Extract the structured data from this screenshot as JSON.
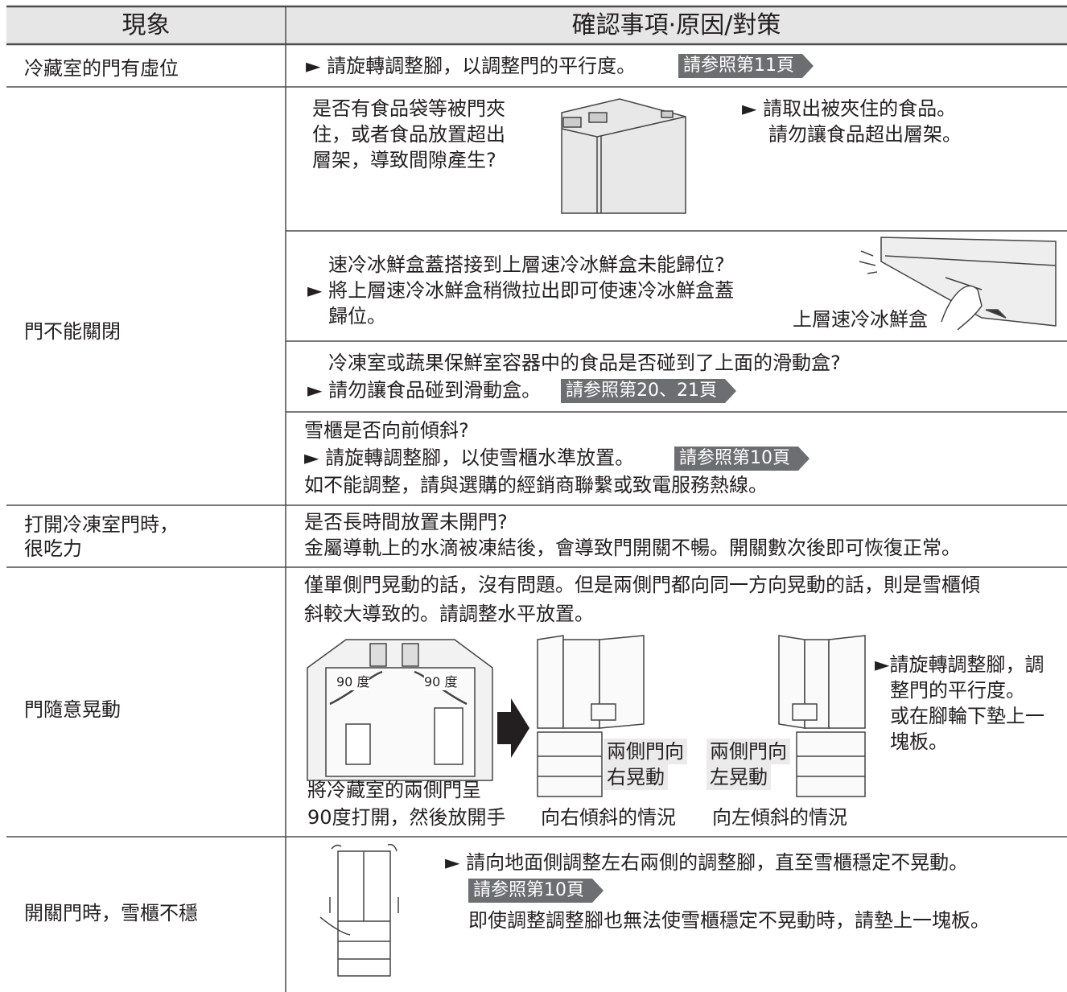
{
  "table": {
    "header": {
      "symptom": "現象",
      "check": "確認事項·原因/對策"
    },
    "rows": [
      {
        "symptom": [
          "冷藏室的門有虛位"
        ],
        "items": [
          {
            "lines": [
              "► 請旋轉調整腳，以調整門的平行度。"
            ],
            "reference": "請参照第11頁"
          }
        ]
      },
      {
        "symptom": [
          "門不能關閉"
        ],
        "items": [
          {
            "question": [
              "是否有食品袋等被門夾",
              "住，或者食品放置超出",
              "層架，導致間隙產生?"
            ],
            "action": [
              "► 請取出被夾住的食品。",
              "請勿讓食品超出層架。"
            ]
          },
          {
            "lines": [
              "速冷冰鮮盒蓋搭接到上層速冷冰鮮盒未能歸位?",
              "► 將上層速冷冰鮮盒稍微拉出即可使速冷冰鮮盒蓋",
              "歸位。"
            ],
            "figure_label": "上層速冷冰鮮盒"
          },
          {
            "lines": [
              "冷凍室或蔬果保鮮室容器中的食品是否碰到了上面的滑動盒?",
              "► 請勿讓食品碰到滑動盒。"
            ],
            "reference": "請参照第20、21頁"
          },
          {
            "lines": [
              "雪櫃是否向前傾斜?",
              "► 請旋轉調整腳，以使雪櫃水準放置。",
              "如不能調整，請與選購的經銷商聯繫或致電服務熱線。"
            ],
            "reference": "請参照第10頁"
          }
        ]
      },
      {
        "symptom": [
          "打開冷凍室門時，",
          "很吃力"
        ],
        "items": [
          {
            "lines": [
              "是否長時間放置未開門?",
              "金屬導軌上的水滴被凍結後，會導致門開關不暢。開關數次後即可恢復正常。"
            ]
          }
        ]
      },
      {
        "symptom": [
          "門隨意晃動"
        ],
        "items": [
          {
            "lines": [
              "僅單側門晃動的話，沒有問題。但是兩側門都向同一方向晃動的話，則是雪櫃傾",
              "斜較大導致的。請調整水平放置。"
            ],
            "figure": {
              "angle_labels": [
                "90 度",
                "90 度"
              ],
              "caption": [
                "將冷藏室的兩側門呈",
                "90度打開，然後放開手"
              ],
              "right_label": [
                "兩側門向",
                "右晃動"
              ],
              "right_caption": "向右傾斜的情況",
              "left_label": [
                "兩側門向",
                "左晃動"
              ],
              "left_caption": "向左傾斜的情況"
            },
            "action": [
              "►請旋轉調整腳，調",
              "整門的平行度。",
              "或在腳輪下墊上一",
              "塊板。"
            ]
          }
        ]
      },
      {
        "symptom": [
          "開關門時，雪櫃不穩"
        ],
        "items": [
          {
            "lines": [
              "► 請向地面側調整左右兩側的調整腳，直至雪櫃穩定不晃動。",
              "即使調整調整腳也無法使雪櫃穩定不晃動時，請墊上一塊板。"
            ],
            "reference": "請参照第10頁"
          }
        ]
      }
    ]
  }
}
